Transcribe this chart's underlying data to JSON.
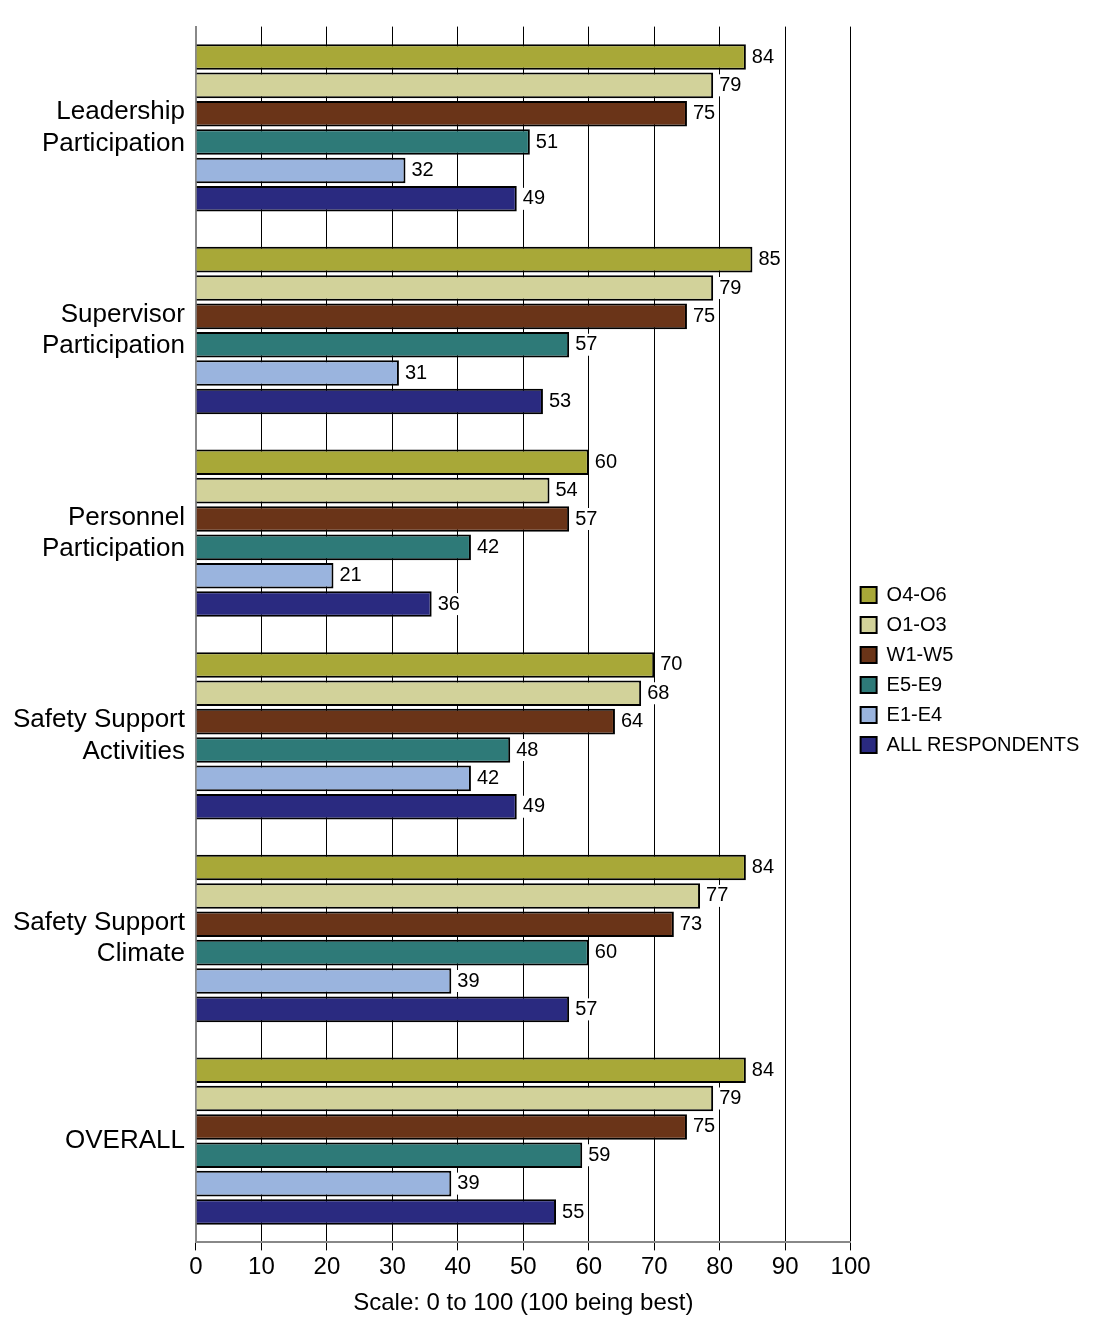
{
  "chart_data": {
    "type": "bar",
    "orientation": "horizontal",
    "xlabel": "Scale: 0 to 100 (100 being best)",
    "categories": [
      "Leadership Participation",
      "Supervisor Participation",
      "Personnel Participation",
      "Safety Support Activities",
      "Safety Support Climate",
      "OVERALL"
    ],
    "series": [
      {
        "name": "O4-O6",
        "color": "#a8a838",
        "values": [
          84,
          85,
          60,
          70,
          84,
          84
        ]
      },
      {
        "name": "O1-O3",
        "color": "#d2d29a",
        "values": [
          79,
          79,
          54,
          68,
          77,
          79
        ]
      },
      {
        "name": "W1-W5",
        "color": "#6a3418",
        "values": [
          75,
          75,
          57,
          64,
          73,
          75
        ]
      },
      {
        "name": "E5-E9",
        "color": "#2e7a78",
        "values": [
          51,
          57,
          42,
          48,
          60,
          59
        ]
      },
      {
        "name": "E1-E4",
        "color": "#9ab4de",
        "values": [
          32,
          31,
          21,
          42,
          39,
          39
        ]
      },
      {
        "name": "ALL RESPONDENTS",
        "color": "#2a2a80",
        "values": [
          49,
          53,
          36,
          49,
          57,
          55
        ]
      }
    ],
    "xlim": [
      0,
      100
    ],
    "xticks": [
      0,
      10,
      20,
      30,
      40,
      50,
      60,
      70,
      80,
      90,
      100
    ],
    "grid": "x",
    "legend": "right",
    "data_labels": true
  }
}
